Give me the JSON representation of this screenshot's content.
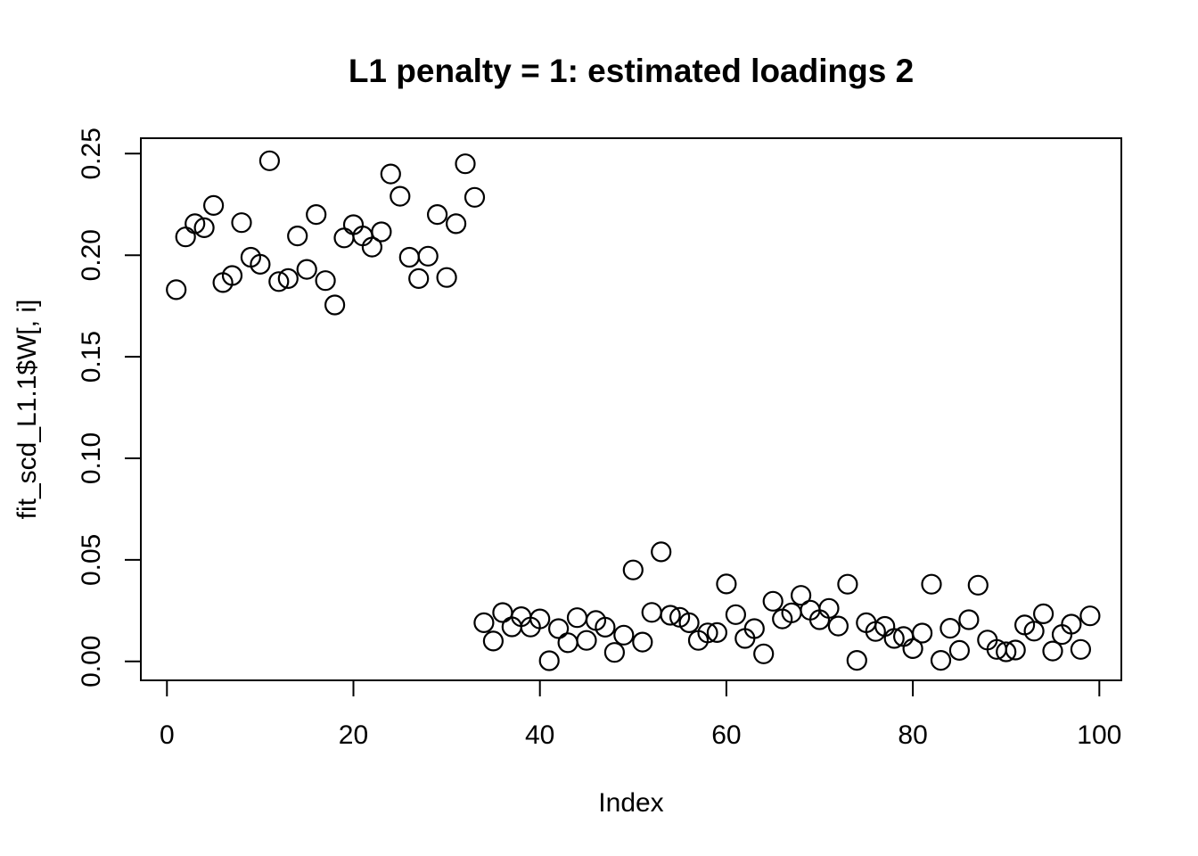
{
  "chart_data": {
    "type": "scatter",
    "title": "L1 penalty = 1: estimated loadings 2",
    "xlabel": "Index",
    "ylabel": "fit_scd_L1.1$W[, i]",
    "marker": "open-circle",
    "marker_color": "#000000",
    "background_color": "#ffffff",
    "grid": false,
    "legend": null,
    "xlim": [
      -2.8,
      102.36
    ],
    "ylim": [
      -0.00935,
      0.2576
    ],
    "x_ticks": [
      0,
      20,
      40,
      60,
      80,
      100
    ],
    "y_ticks": [
      0.0,
      0.05,
      0.1,
      0.15,
      0.2,
      0.25
    ],
    "y_tick_labels": [
      "0.00",
      "0.05",
      "0.10",
      "0.15",
      "0.20",
      "0.25"
    ],
    "x": [
      1,
      2,
      3,
      4,
      5,
      6,
      7,
      8,
      9,
      10,
      11,
      12,
      13,
      14,
      15,
      16,
      17,
      18,
      19,
      20,
      21,
      22,
      23,
      24,
      25,
      26,
      27,
      28,
      29,
      30,
      31,
      32,
      33,
      34,
      35,
      36,
      37,
      38,
      39,
      40,
      41,
      42,
      43,
      44,
      45,
      46,
      47,
      48,
      49,
      50,
      51,
      52,
      53,
      54,
      55,
      56,
      57,
      58,
      59,
      60,
      61,
      62,
      63,
      64,
      65,
      66,
      67,
      68,
      69,
      70,
      71,
      72,
      73,
      74,
      75,
      76,
      77,
      78,
      79,
      80,
      81,
      82,
      83,
      84,
      85,
      86,
      87,
      88,
      89,
      90,
      91,
      92,
      93,
      94,
      95,
      96,
      97,
      98,
      99
    ],
    "y": [
      0.183,
      0.209,
      0.2155,
      0.2135,
      0.2245,
      0.1865,
      0.19,
      0.216,
      0.199,
      0.1955,
      0.2465,
      0.187,
      0.1885,
      0.2095,
      0.193,
      0.22,
      0.1875,
      0.1755,
      0.2085,
      0.215,
      0.2095,
      0.204,
      0.2115,
      0.24,
      0.229,
      0.199,
      0.1885,
      0.1995,
      0.22,
      0.189,
      0.2155,
      0.245,
      0.2285,
      0.019,
      0.01,
      0.024,
      0.017,
      0.022,
      0.0169,
      0.0209,
      0.0003,
      0.0161,
      0.0092,
      0.0215,
      0.0103,
      0.0201,
      0.0168,
      0.0044,
      0.0129,
      0.045,
      0.0095,
      0.0241,
      0.0539,
      0.0227,
      0.0217,
      0.019,
      0.0103,
      0.014,
      0.0142,
      0.0381,
      0.023,
      0.0113,
      0.0161,
      0.0037,
      0.0296,
      0.0209,
      0.0239,
      0.0325,
      0.0252,
      0.0205,
      0.0261,
      0.0174,
      0.038,
      0.0005,
      0.019,
      0.0147,
      0.0172,
      0.0113,
      0.0122,
      0.0063,
      0.0139,
      0.038,
      0.0005,
      0.0163,
      0.0054,
      0.0205,
      0.0375,
      0.0105,
      0.0059,
      0.0047,
      0.0056,
      0.0179,
      0.0149,
      0.0234,
      0.0051,
      0.0132,
      0.0183,
      0.0059,
      0.0224
    ]
  }
}
